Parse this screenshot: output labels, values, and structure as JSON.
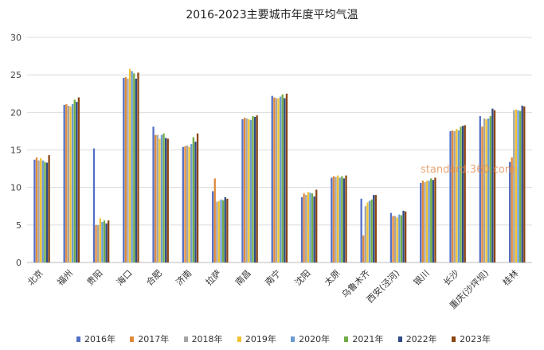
{
  "chart_data": {
    "type": "bar",
    "title": "2016-2023主要城市年度平均气温",
    "ylim": [
      0,
      30
    ],
    "yticks": [
      0,
      5,
      10,
      15,
      20,
      25,
      30
    ],
    "grid": true,
    "legend_position": "bottom",
    "categories": [
      "北京",
      "福州",
      "贵阳",
      "海口",
      "合肥",
      "济南",
      "拉萨",
      "南昌",
      "南宁",
      "沈阳",
      "太原",
      "乌鲁木齐",
      "西安(泾河)",
      "银川",
      "长沙",
      "重庆(沙坪坝)",
      "桂林"
    ],
    "series": [
      {
        "name": "2016年",
        "color": "#5470c6",
        "values": [
          13.7,
          21.0,
          15.2,
          24.6,
          18.1,
          15.4,
          9.5,
          19.1,
          22.2,
          8.7,
          11.3,
          8.5,
          6.6,
          10.6,
          17.5,
          19.5,
          13.4
        ]
      },
      {
        "name": "2017年",
        "color": "#e08a3c",
        "values": [
          14.0,
          21.1,
          5.0,
          24.7,
          17.0,
          15.5,
          11.2,
          19.3,
          22.0,
          9.2,
          11.5,
          3.6,
          6.2,
          10.9,
          17.6,
          18.1,
          14.0
        ]
      },
      {
        "name": "2018年",
        "color": "#a5a5a5",
        "values": [
          13.6,
          20.9,
          5.0,
          24.5,
          17.0,
          15.6,
          8.1,
          19.2,
          21.9,
          9.0,
          11.4,
          7.5,
          6.2,
          10.7,
          17.5,
          19.2,
          20.3
        ]
      },
      {
        "name": "2019年",
        "color": "#f1c232",
        "values": [
          13.9,
          20.8,
          5.9,
          25.8,
          16.5,
          15.4,
          8.2,
          19.1,
          21.9,
          9.4,
          11.6,
          8.0,
          6.0,
          10.9,
          17.8,
          19.1,
          20.4
        ]
      },
      {
        "name": "2020年",
        "color": "#6c9bd2",
        "values": [
          13.6,
          21.1,
          5.4,
          25.5,
          17.0,
          15.8,
          8.4,
          19.0,
          22.1,
          9.3,
          11.3,
          8.2,
          6.4,
          10.9,
          17.6,
          19.2,
          20.3
        ]
      },
      {
        "name": "2021年",
        "color": "#70ad47",
        "values": [
          13.4,
          21.7,
          5.6,
          25.2,
          17.2,
          16.7,
          8.3,
          19.5,
          22.4,
          9.2,
          11.5,
          8.4,
          6.3,
          11.2,
          18.1,
          19.5,
          20.2
        ]
      },
      {
        "name": "2022年",
        "color": "#2f4a84",
        "values": [
          13.3,
          21.4,
          5.2,
          24.5,
          16.6,
          16.1,
          8.7,
          19.4,
          21.9,
          8.8,
          11.2,
          9.0,
          6.9,
          11.0,
          18.2,
          20.5,
          20.9
        ]
      },
      {
        "name": "2023年",
        "color": "#8b4513",
        "values": [
          14.3,
          22.0,
          5.6,
          25.3,
          16.5,
          17.2,
          8.5,
          19.6,
          22.5,
          9.7,
          11.6,
          9.0,
          6.8,
          11.3,
          18.3,
          20.3,
          20.8
        ]
      }
    ]
  },
  "watermark": "standard.360.com"
}
